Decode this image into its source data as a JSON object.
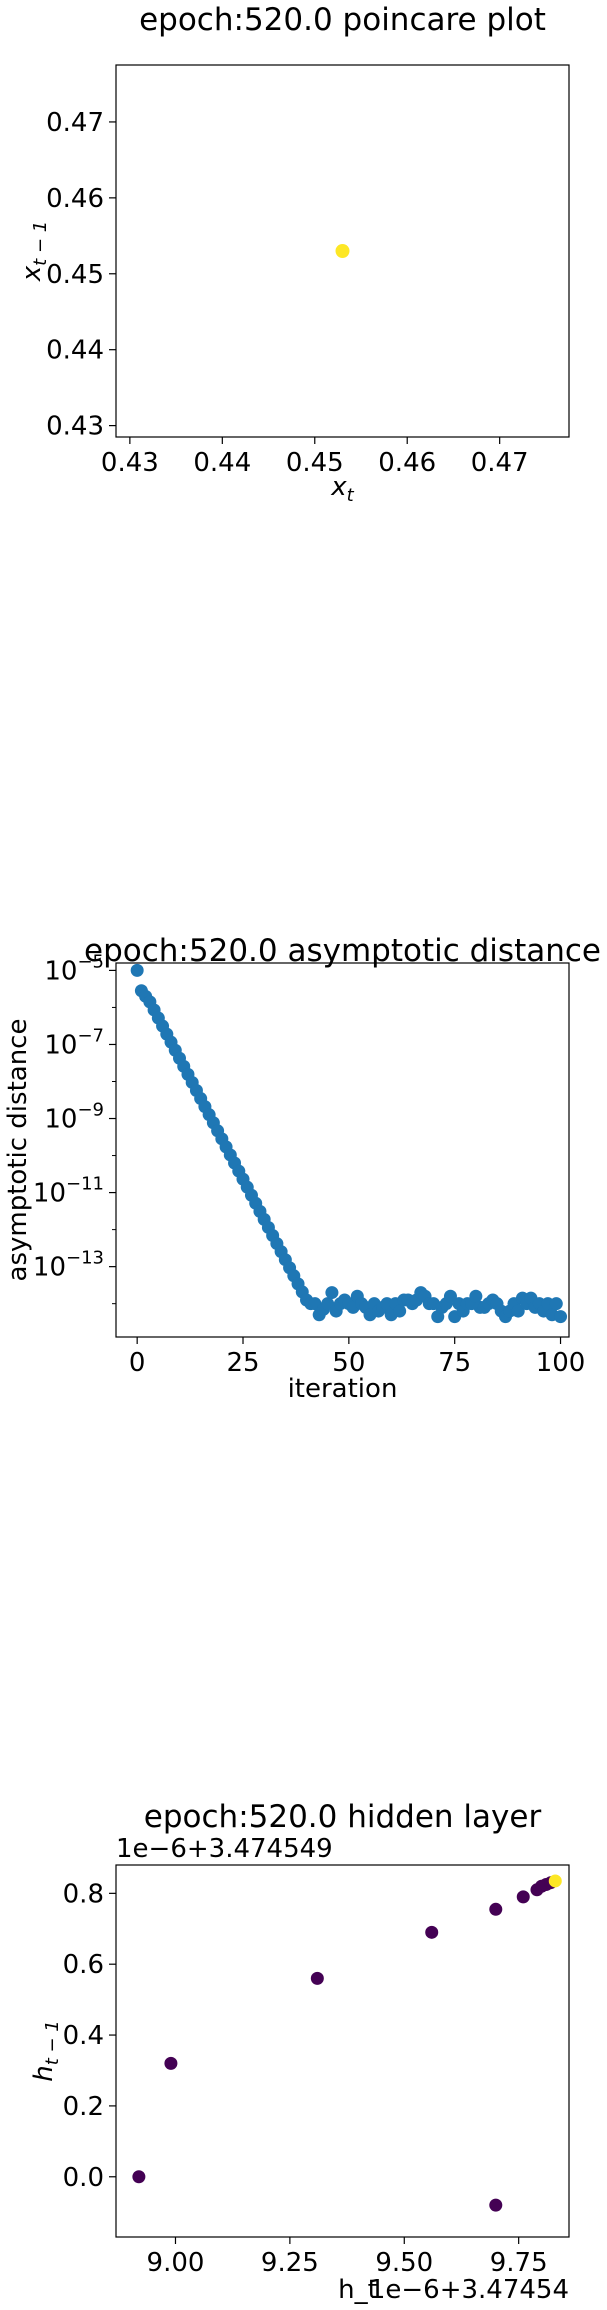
{
  "chart_data": [
    {
      "type": "scatter",
      "title": "epoch:520.0 poincare plot",
      "xlabel": "x",
      "xlabel_sub": "t",
      "ylabel": "x",
      "ylabel_sub": "t − 1",
      "xlim": [
        0.4285,
        0.4775
      ],
      "ylim": [
        0.4285,
        0.4775
      ],
      "xticks": [
        0.43,
        0.44,
        0.45,
        0.46,
        0.47
      ],
      "xtick_labels": [
        "0.43",
        "0.44",
        "0.45",
        "0.46",
        "0.47"
      ],
      "yticks": [
        0.43,
        0.44,
        0.45,
        0.46,
        0.47
      ],
      "ytick_labels": [
        "0.43",
        "0.44",
        "0.45",
        "0.46",
        "0.47"
      ],
      "points": [
        [
          0.453,
          0.453
        ]
      ],
      "color": "#fde725",
      "grid": false
    },
    {
      "type": "scatter",
      "title": "epoch:520.0 asymptotic distance",
      "xlabel": "iteration",
      "ylabel": "asymptotic distance",
      "yscale": "log",
      "xlim": [
        -5,
        102
      ],
      "ylim_log10": [
        -14.9,
        -4.8
      ],
      "xticks": [
        0,
        25,
        50,
        75,
        100
      ],
      "xtick_labels": [
        "0",
        "25",
        "50",
        "75",
        "100"
      ],
      "yticks_log10": [
        -5,
        -7,
        -9,
        -11,
        -13
      ],
      "ytick_labels": [
        "10",
        "10",
        "10",
        "10",
        "10"
      ],
      "ytick_exps": [
        "−5",
        "−7",
        "−9",
        "−11",
        "−13"
      ],
      "color": "#1f77b4",
      "decay": {
        "x_start": 0,
        "x_end": 40,
        "log10_start": -5.0,
        "log10_end": -13.9
      },
      "first_points": [
        [
          0,
          -5.0
        ],
        [
          1,
          -5.55
        ],
        [
          2,
          -5.7
        ],
        [
          3,
          -5.85
        ]
      ],
      "plateau_log10": [
        -14.0,
        -14.0,
        -14.3,
        -14.15,
        -14.0,
        -13.7,
        -14.2,
        -14.0,
        -13.9,
        -14.0,
        -14.1,
        -13.8,
        -14.0,
        -14.1,
        -14.3,
        -14.0,
        -14.2,
        -14.1,
        -14.0,
        -14.3,
        -14.0,
        -14.2,
        -13.9,
        -13.9,
        -14.0,
        -13.9,
        -13.7,
        -13.8,
        -14.0,
        -14.0,
        -14.35,
        -14.1,
        -14.0,
        -13.8,
        -14.35,
        -14.0,
        -14.2,
        -14.0,
        -14.0,
        -13.8,
        -14.1,
        -14.1,
        -14.0,
        -13.9,
        -14.0,
        -14.2,
        -14.35,
        -14.2,
        -14.0,
        -14.2,
        -13.85,
        -14.0,
        -13.85,
        -14.1,
        -14.0,
        -14.2,
        -14.0,
        -14.3,
        -14.0,
        -14.35
      ],
      "grid": false
    },
    {
      "type": "scatter",
      "title": "epoch:520.0 hidden layer",
      "xlabel": "h_t",
      "ylabel": "h",
      "ylabel_sub": "t − 1",
      "x_offset_label": "1e−6+3.47454",
      "y_offset_label": "1e−6+3.474549",
      "xlim": [
        8.87,
        9.86
      ],
      "ylim": [
        -0.17,
        0.88
      ],
      "xticks": [
        9.0,
        9.25,
        9.5,
        9.75
      ],
      "xtick_labels": [
        "9.00",
        "9.25",
        "9.50",
        "9.75"
      ],
      "yticks": [
        0.0,
        0.2,
        0.4,
        0.6,
        0.8
      ],
      "ytick_labels": [
        "0.0",
        "0.2",
        "0.4",
        "0.6",
        "0.8"
      ],
      "points": [
        [
          8.92,
          0.0
        ],
        [
          8.99,
          0.32
        ],
        [
          9.31,
          0.56
        ],
        [
          9.56,
          0.69
        ],
        [
          9.7,
          0.755
        ],
        [
          9.7,
          -0.08
        ],
        [
          9.76,
          0.79
        ],
        [
          9.79,
          0.81
        ],
        [
          9.8,
          0.82
        ],
        [
          9.81,
          0.825
        ],
        [
          9.82,
          0.83
        ],
        [
          9.83,
          0.835
        ]
      ],
      "point_colors": [
        "#440154",
        "#440154",
        "#440154",
        "#440154",
        "#440154",
        "#440154",
        "#440154",
        "#440154",
        "#440154",
        "#440154",
        "#440154",
        "#fde725"
      ],
      "grid": false
    }
  ]
}
